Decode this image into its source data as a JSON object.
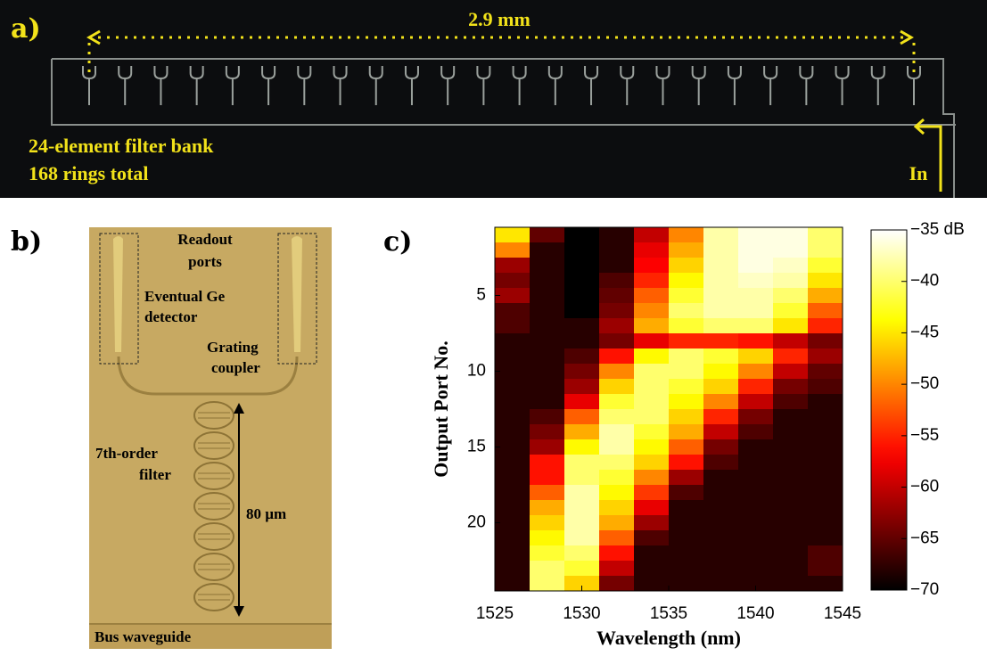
{
  "panel_a": {
    "label": "a)",
    "dimension": "2.9 mm",
    "caption_lines": [
      "24-element filter bank",
      "168 rings total"
    ],
    "input": "In"
  },
  "panel_b": {
    "label": "b)",
    "readout_lines": [
      "Readout",
      "ports"
    ],
    "detector_lines": [
      "Eventual Ge",
      "detector"
    ],
    "coupler_lines": [
      "Grating",
      "coupler"
    ],
    "filter_lines": [
      "7th-order",
      "filter"
    ],
    "length": "80 µm",
    "bus": "Bus waveguide"
  },
  "chart_data": {
    "type": "heatmap",
    "panel_label": "c)",
    "xlabel": "Wavelength (nm)",
    "ylabel": "Output Port No.",
    "colormap": "hot",
    "x": [
      1526,
      1528,
      1530,
      1532,
      1534,
      1536,
      1538,
      1540,
      1542,
      1544
    ],
    "y": [
      1,
      2,
      3,
      4,
      5,
      6,
      7,
      8,
      9,
      10,
      11,
      12,
      13,
      14,
      15,
      16,
      17,
      18,
      19,
      20,
      21,
      22,
      23,
      24
    ],
    "values": [
      [
        -45,
        -65,
        -70,
        -68,
        -60,
        -50,
        -38,
        -36,
        -36,
        -40
      ],
      [
        -50,
        -68,
        -70,
        -68,
        -58,
        -48,
        -38,
        -36,
        -36,
        -40
      ],
      [
        -62,
        -68,
        -70,
        -68,
        -57,
        -46,
        -38,
        -36,
        -37,
        -42
      ],
      [
        -64,
        -68,
        -70,
        -66,
        -55,
        -44,
        -38,
        -37,
        -38,
        -45
      ],
      [
        -62,
        -68,
        -70,
        -65,
        -52,
        -42,
        -38,
        -38,
        -40,
        -48
      ],
      [
        -66,
        -68,
        -70,
        -64,
        -50,
        -40,
        -38,
        -38,
        -42,
        -52
      ],
      [
        -66,
        -68,
        -68,
        -62,
        -48,
        -42,
        -40,
        -40,
        -45,
        -55
      ],
      [
        -68,
        -68,
        -68,
        -64,
        -58,
        -55,
        -55,
        -56,
        -60,
        -64
      ],
      [
        -68,
        -68,
        -66,
        -56,
        -44,
        -40,
        -42,
        -46,
        -55,
        -62
      ],
      [
        -68,
        -68,
        -64,
        -50,
        -40,
        -40,
        -44,
        -50,
        -60,
        -65
      ],
      [
        -68,
        -68,
        -62,
        -46,
        -40,
        -42,
        -46,
        -55,
        -64,
        -66
      ],
      [
        -68,
        -68,
        -58,
        -42,
        -40,
        -44,
        -50,
        -60,
        -66,
        -68
      ],
      [
        -68,
        -66,
        -52,
        -40,
        -40,
        -46,
        -55,
        -64,
        -68,
        -68
      ],
      [
        -68,
        -64,
        -48,
        -38,
        -42,
        -48,
        -60,
        -66,
        -68,
        -68
      ],
      [
        -68,
        -62,
        -44,
        -38,
        -44,
        -52,
        -64,
        -68,
        -68,
        -68
      ],
      [
        -68,
        -56,
        -40,
        -40,
        -46,
        -56,
        -66,
        -68,
        -68,
        -68
      ],
      [
        -68,
        -56,
        -40,
        -42,
        -50,
        -62,
        -68,
        -68,
        -68,
        -68
      ],
      [
        -68,
        -52,
        -38,
        -44,
        -54,
        -66,
        -68,
        -68,
        -68,
        -68
      ],
      [
        -68,
        -48,
        -38,
        -46,
        -58,
        -68,
        -68,
        -68,
        -68,
        -68
      ],
      [
        -68,
        -46,
        -38,
        -48,
        -62,
        -68,
        -68,
        -68,
        -68,
        -68
      ],
      [
        -68,
        -44,
        -38,
        -52,
        -66,
        -68,
        -68,
        -68,
        -68,
        -68
      ],
      [
        -68,
        -42,
        -40,
        -56,
        -68,
        -68,
        -68,
        -68,
        -68,
        -66
      ],
      [
        -68,
        -40,
        -42,
        -60,
        -68,
        -68,
        -68,
        -68,
        -68,
        -66
      ],
      [
        -68,
        -40,
        -46,
        -64,
        -68,
        -68,
        -68,
        -68,
        -68,
        -68
      ]
    ],
    "xlim": [
      1525,
      1545
    ],
    "xticks": [
      1525,
      1530,
      1535,
      1540,
      1545
    ],
    "ylim": [
      0.5,
      24.5
    ],
    "yticks": [
      5,
      10,
      15,
      20
    ],
    "clim": [
      -70,
      -35
    ],
    "cticks": [
      {
        "value": -35,
        "label": "−35 dB"
      },
      {
        "value": -40,
        "label": "−40"
      },
      {
        "value": -45,
        "label": "−45"
      },
      {
        "value": -50,
        "label": "−50"
      },
      {
        "value": -55,
        "label": "−55"
      },
      {
        "value": -60,
        "label": "−60"
      },
      {
        "value": -65,
        "label": "−65"
      },
      {
        "value": -70,
        "label": "−70"
      }
    ]
  }
}
